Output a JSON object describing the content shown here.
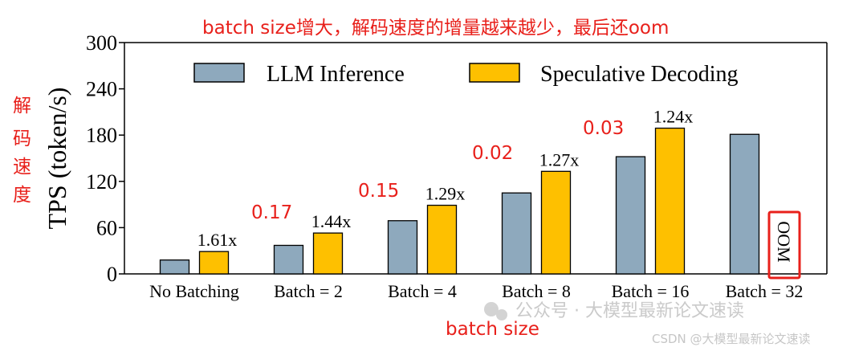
{
  "annotations": {
    "top_note": "batch size增大，解码速度的增量越来越少，最后还oom",
    "y_note_chars": [
      "解",
      "码",
      "速",
      "度"
    ],
    "x_note": "batch size",
    "oom_label": "OOM",
    "increment_labels": [
      "0.17",
      "0.15",
      "0.02",
      "0.03"
    ],
    "red_color": "#e8201b"
  },
  "watermark": {
    "line1": "公众号 · 大模型最新论文速读",
    "line2": "CSDN @大模型最新论文速读"
  },
  "chart_data": {
    "type": "bar",
    "title": "",
    "xlabel": "",
    "ylabel": "TPS (token/s)",
    "ylim": [
      0,
      300
    ],
    "yticks": [
      "0",
      "60",
      "120",
      "180",
      "240",
      "300"
    ],
    "categories": [
      "No Batching",
      "Batch = 2",
      "Batch = 4",
      "Batch = 8",
      "Batch = 16",
      "Batch = 32"
    ],
    "series": [
      {
        "name": "LLM Inference",
        "color": "#8ea9bd",
        "values": [
          18,
          37,
          69,
          105,
          152,
          181
        ]
      },
      {
        "name": "Speculative Decoding",
        "color": "#fec000",
        "values": [
          29,
          53,
          89,
          133,
          189,
          null
        ]
      }
    ],
    "speedup_labels": [
      "1.61x",
      "1.44x",
      "1.29x",
      "1.27x",
      "1.24x",
      ""
    ],
    "legend_position": "top-center"
  }
}
